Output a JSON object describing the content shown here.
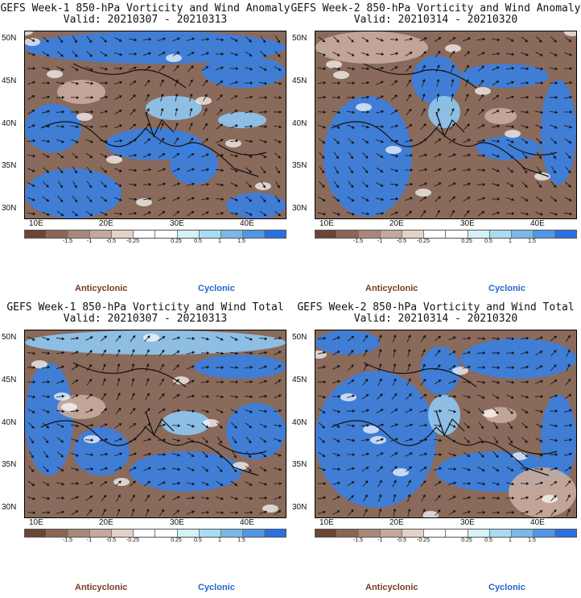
{
  "panels": [
    {
      "title": "GEFS Week-1 850-hPa Vorticity and Wind Anomaly",
      "valid": "Valid: 20210307 - 20210313"
    },
    {
      "title": "GEFS Week-2 850-hPa Vorticity and Wind Anomaly",
      "valid": "Valid: 20210314 - 20210320"
    },
    {
      "title": "GEFS Week-1 850-hPa Vorticity and Wind Total",
      "valid": "Valid: 20210307 - 20210313"
    },
    {
      "title": "GEFS Week-2 850-hPa Vorticity and Wind Total",
      "valid": "Valid: 20210314 - 20210320"
    }
  ],
  "lat_labels": [
    "50N",
    "45N",
    "40N",
    "35N",
    "30N"
  ],
  "lon_labels": [
    "10E",
    "20E",
    "30E",
    "40E"
  ],
  "colorbar": {
    "colors": [
      "#6b4536",
      "#8b6555",
      "#a88878",
      "#c4a89a",
      "#e4d2c8",
      "#ffffff",
      "#ffffff",
      "#d4f2f8",
      "#a8dcf4",
      "#7ab8ea",
      "#5096e6",
      "#2a70e0"
    ],
    "tick_labels": [
      "-1.5",
      "-1",
      "-0.5",
      "-0.25",
      "0.25",
      "0.5",
      "1",
      "1.5"
    ]
  },
  "legend": {
    "anticyclonic": "Anticyclonic",
    "cyclonic": "Cyclonic"
  },
  "map_colors": {
    "brown": "#8a6a5b",
    "light_brown": "#c8aa9c",
    "blue": "#3a7fe0",
    "light_blue": "#8ec6f0"
  }
}
